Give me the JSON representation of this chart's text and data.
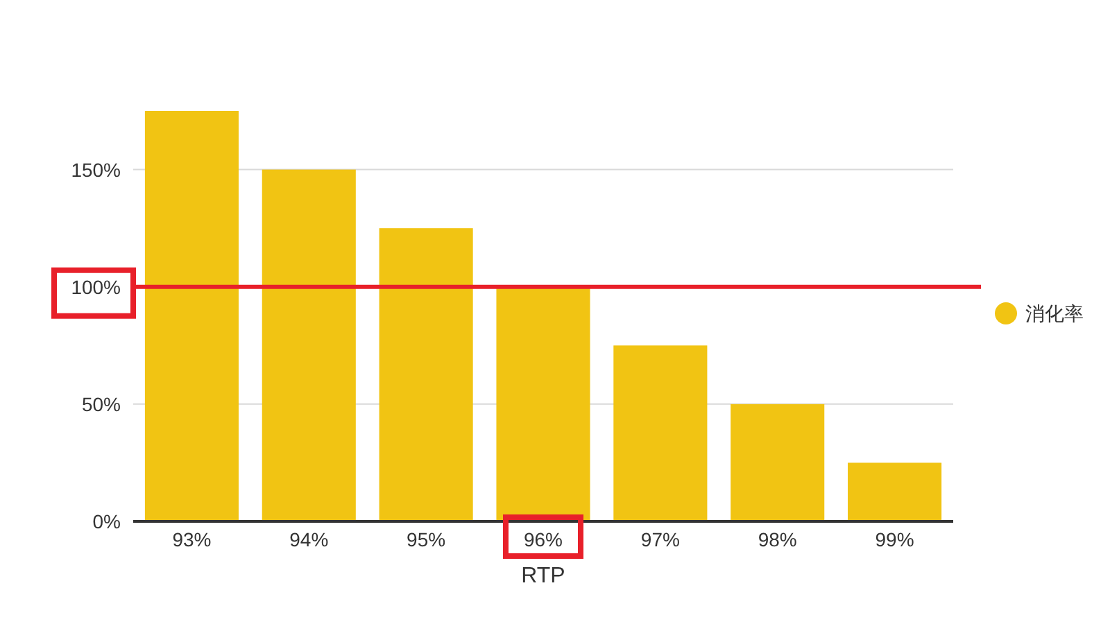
{
  "chart_data": {
    "type": "bar",
    "xlabel": "RTP",
    "categories": [
      "93%",
      "94%",
      "95%",
      "96%",
      "97%",
      "98%",
      "99%"
    ],
    "series": [
      {
        "name": "消化率",
        "color": "#f1c413",
        "values": [
          175,
          150,
          125,
          100,
          75,
          50,
          25
        ]
      }
    ],
    "yticks": [
      {
        "value": 0,
        "label": "0%"
      },
      {
        "value": 50,
        "label": "50%"
      },
      {
        "value": 100,
        "label": "100%"
      },
      {
        "value": 150,
        "label": "150%"
      }
    ],
    "ylim": [
      0,
      175
    ],
    "grid": "y",
    "legend": "right",
    "ref_lines": [
      {
        "axis": "y",
        "value": 100,
        "color": "#e8202a",
        "line_style": "solid"
      }
    ]
  }
}
